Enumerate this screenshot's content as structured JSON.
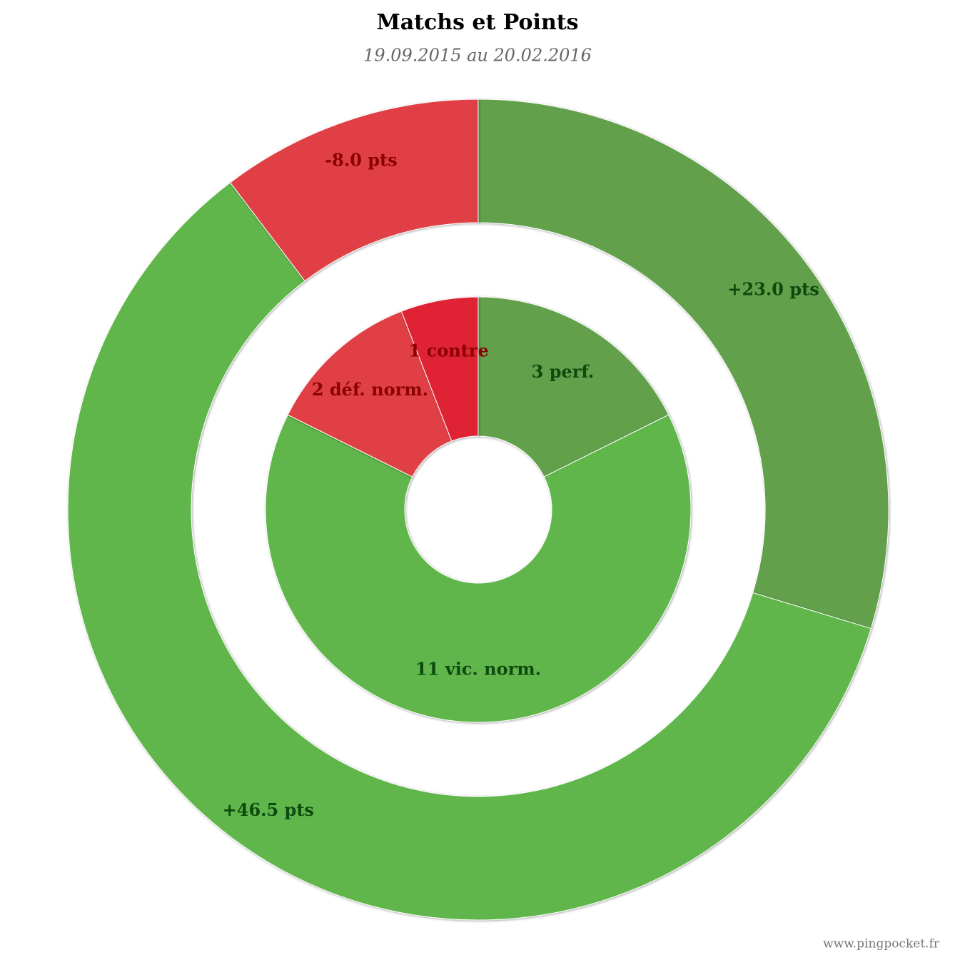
{
  "chart_data": {
    "type": "donut",
    "title": "Matchs et Points",
    "subtitle": "19.09.2015 au 20.02.2016",
    "credit": "www.pingpocket.fr",
    "series": [
      {
        "values": [
          23.0,
          46.5,
          -8.0
        ],
        "value_labels": [
          "+23.0 pts",
          "+46.5 pts",
          "-8.0 pts"
        ],
        "colors": [
          "#62a04c",
          "#61b64b",
          "#e04045"
        ],
        "label_colors": [
          "#0d4a0d",
          "#0d4a0d",
          "#8b0000"
        ]
      },
      {
        "values": [
          3,
          11,
          2,
          1
        ],
        "value_labels": [
          "3 perf.",
          "11 vic. norm.",
          "2 déf. norm.",
          "1 contre"
        ],
        "colors": [
          "#62a04c",
          "#61b64b",
          "#e04045",
          "#e02434"
        ],
        "label_colors": [
          "#0d4a0d",
          "#0d4a0d",
          "#8b0000",
          "#8b0000"
        ]
      }
    ]
  }
}
